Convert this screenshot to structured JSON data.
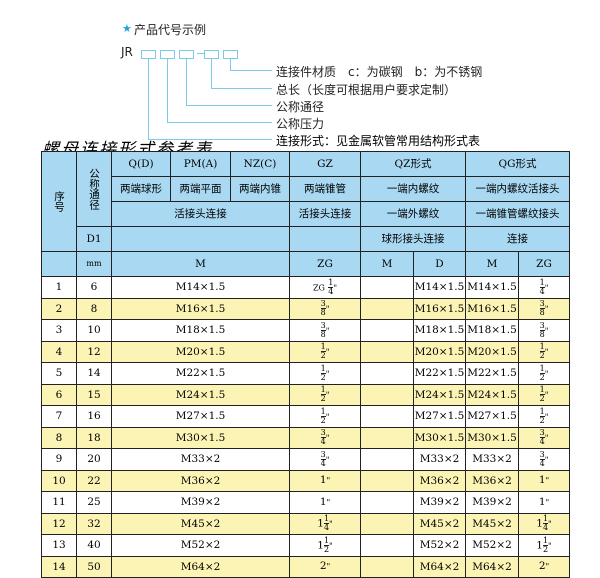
{
  "diagram": {
    "heading": "产品代号示例",
    "code_prefix": "JR",
    "labels": [
      "连接件材质　c：为碳钢　b：为不锈钢",
      "总长（长度可根据用户要求定制）",
      "公称通径",
      "公称压力",
      "连接形式：见金属软管常用结构形式表"
    ],
    "star_color": "#2a9fd6"
  },
  "title": "螺母连接形式参考表",
  "header": {
    "seq": "序号",
    "dn": "公称通径",
    "d1": "D1",
    "mm": "mm",
    "qd": "Q(D)",
    "pm": "PM(A)",
    "nz": "NZ(C)",
    "gz": "GZ",
    "qz": "QZ形式",
    "qg": "QG形式",
    "qd2": "两端球形",
    "pm2": "两端平面",
    "nz2": "两端内锥",
    "gz2": "两端锥管",
    "qz2": "一端内螺纹",
    "qg2": "一端内螺纹活接头",
    "live": "活接头连接",
    "gz3": "活接头连接",
    "qz3": "一端外螺纹",
    "qg3": "一端锥管螺纹接头",
    "qz4": "球形接头连接",
    "qg4": "连接",
    "m": "M",
    "zg": "ZG",
    "qzm": "M",
    "qzd": "D",
    "qgm": "M",
    "qgzg": "ZG"
  },
  "colors": {
    "header_bg": "#a9d9f2",
    "alt_row_bg": "#fcf4b4"
  },
  "rows": [
    {
      "no": "1",
      "dn": "6",
      "m": "M14×1.5",
      "gz": {
        "p": "ZG",
        "w": "",
        "n": "1",
        "d": "4"
      },
      "qzm": "",
      "qzd": "M14×1.5",
      "qgm": "M14×1.5",
      "qg": {
        "p": "",
        "w": "",
        "n": "1",
        "d": "4"
      }
    },
    {
      "no": "2",
      "dn": "8",
      "m": "M16×1.5",
      "gz": {
        "p": "",
        "w": "",
        "n": "3",
        "d": "8"
      },
      "qzm": "",
      "qzd": "M16×1.5",
      "qgm": "M16×1.5",
      "qg": {
        "p": "",
        "w": "",
        "n": "3",
        "d": "8"
      }
    },
    {
      "no": "3",
      "dn": "10",
      "m": "M18×1.5",
      "gz": {
        "p": "",
        "w": "",
        "n": "3",
        "d": "8"
      },
      "qzm": "",
      "qzd": "M18×1.5",
      "qgm": "M18×1.5",
      "qg": {
        "p": "",
        "w": "",
        "n": "3",
        "d": "8"
      }
    },
    {
      "no": "4",
      "dn": "12",
      "m": "M20×1.5",
      "gz": {
        "p": "",
        "w": "",
        "n": "1",
        "d": "2"
      },
      "qzm": "",
      "qzd": "M20×1.5",
      "qgm": "M20×1.5",
      "qg": {
        "p": "",
        "w": "",
        "n": "1",
        "d": "2"
      }
    },
    {
      "no": "5",
      "dn": "14",
      "m": "M22×1.5",
      "gz": {
        "p": "",
        "w": "",
        "n": "1",
        "d": "2"
      },
      "qzm": "",
      "qzd": "M22×1.5",
      "qgm": "M22×1.5",
      "qg": {
        "p": "",
        "w": "",
        "n": "1",
        "d": "2"
      }
    },
    {
      "no": "6",
      "dn": "15",
      "m": "M24×1.5",
      "gz": {
        "p": "",
        "w": "",
        "n": "1",
        "d": "2"
      },
      "qzm": "",
      "qzd": "M24×1.5",
      "qgm": "M24×1.5",
      "qg": {
        "p": "",
        "w": "",
        "n": "1",
        "d": "2"
      }
    },
    {
      "no": "7",
      "dn": "16",
      "m": "M27×1.5",
      "gz": {
        "p": "",
        "w": "",
        "n": "1",
        "d": "2"
      },
      "qzm": "",
      "qzd": "M27×1.5",
      "qgm": "M27×1.5",
      "qg": {
        "p": "",
        "w": "",
        "n": "1",
        "d": "2"
      }
    },
    {
      "no": "8",
      "dn": "18",
      "m": "M30×1.5",
      "gz": {
        "p": "",
        "w": "",
        "n": "3",
        "d": "4"
      },
      "qzm": "",
      "qzd": "M30×1.5",
      "qgm": "M30×1.5",
      "qg": {
        "p": "",
        "w": "",
        "n": "3",
        "d": "4"
      }
    },
    {
      "no": "9",
      "dn": "20",
      "m": "M33×2",
      "gz": {
        "p": "",
        "w": "",
        "n": "3",
        "d": "4"
      },
      "qzm": "",
      "qzd": "M33×2",
      "qgm": "M33×2",
      "qg": {
        "p": "",
        "w": "",
        "n": "3",
        "d": "4"
      }
    },
    {
      "no": "10",
      "dn": "22",
      "m": "M36×2",
      "gz": {
        "p": "",
        "w": "1",
        "n": "",
        "d": ""
      },
      "qzm": "",
      "qzd": "M36×2",
      "qgm": "M36×2",
      "qg": {
        "p": "",
        "w": "1",
        "n": "",
        "d": ""
      }
    },
    {
      "no": "11",
      "dn": "25",
      "m": "M39×2",
      "gz": {
        "p": "",
        "w": "1",
        "n": "",
        "d": ""
      },
      "qzm": "",
      "qzd": "M39×2",
      "qgm": "M39×2",
      "qg": {
        "p": "",
        "w": "1",
        "n": "",
        "d": ""
      }
    },
    {
      "no": "12",
      "dn": "32",
      "m": "M45×2",
      "gz": {
        "p": "",
        "w": "1",
        "n": "1",
        "d": "4"
      },
      "qzm": "",
      "qzd": "M45×2",
      "qgm": "M45×2",
      "qg": {
        "p": "",
        "w": "1",
        "n": "1",
        "d": "4"
      }
    },
    {
      "no": "13",
      "dn": "40",
      "m": "M52×2",
      "gz": {
        "p": "",
        "w": "1",
        "n": "1",
        "d": "2"
      },
      "qzm": "",
      "qzd": "M52×2",
      "qgm": "M52×2",
      "qg": {
        "p": "",
        "w": "1",
        "n": "1",
        "d": "2"
      }
    },
    {
      "no": "14",
      "dn": "50",
      "m": "M64×2",
      "gz": {
        "p": "",
        "w": "2",
        "n": "",
        "d": ""
      },
      "qzm": "",
      "qzd": "M64×2",
      "qgm": "M64×2",
      "qg": {
        "p": "",
        "w": "2",
        "n": "",
        "d": ""
      }
    }
  ]
}
